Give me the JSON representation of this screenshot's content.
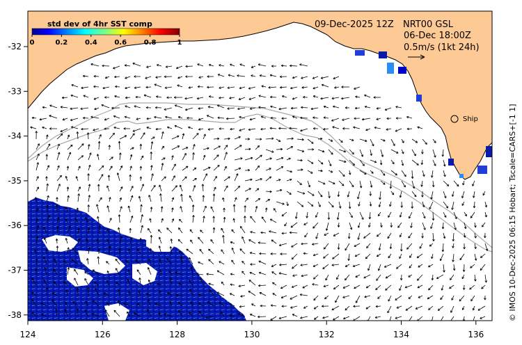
{
  "map": {
    "date_label": "09-Dec-2025 12Z",
    "product_label": "NRT00 GSL",
    "time_label": "06-Dec 18:00Z",
    "scale_label": "0.5m/s (1kt 24h)",
    "ship_label": "Ship",
    "credit": "© IMOS 10-Dec-2025 06:15 Hobart; Tscale=CARS+[-1 1]",
    "lon_ticks": [
      "124",
      "126",
      "128",
      "130",
      "132",
      "134",
      "136"
    ],
    "lat_ticks": [
      "-32",
      "-33",
      "-34",
      "-35",
      "-36",
      "-37",
      "-38"
    ],
    "colors": {
      "land": "#fdc994",
      "shelf_line": "#a8a8a8",
      "arrows": "#000000"
    }
  },
  "colorbar": {
    "title": "std dev of 4hr SST comp",
    "ticks": [
      "0",
      "0.2",
      "0.4",
      "0.6",
      "0.8",
      "1"
    ],
    "colormap": "jet"
  }
}
